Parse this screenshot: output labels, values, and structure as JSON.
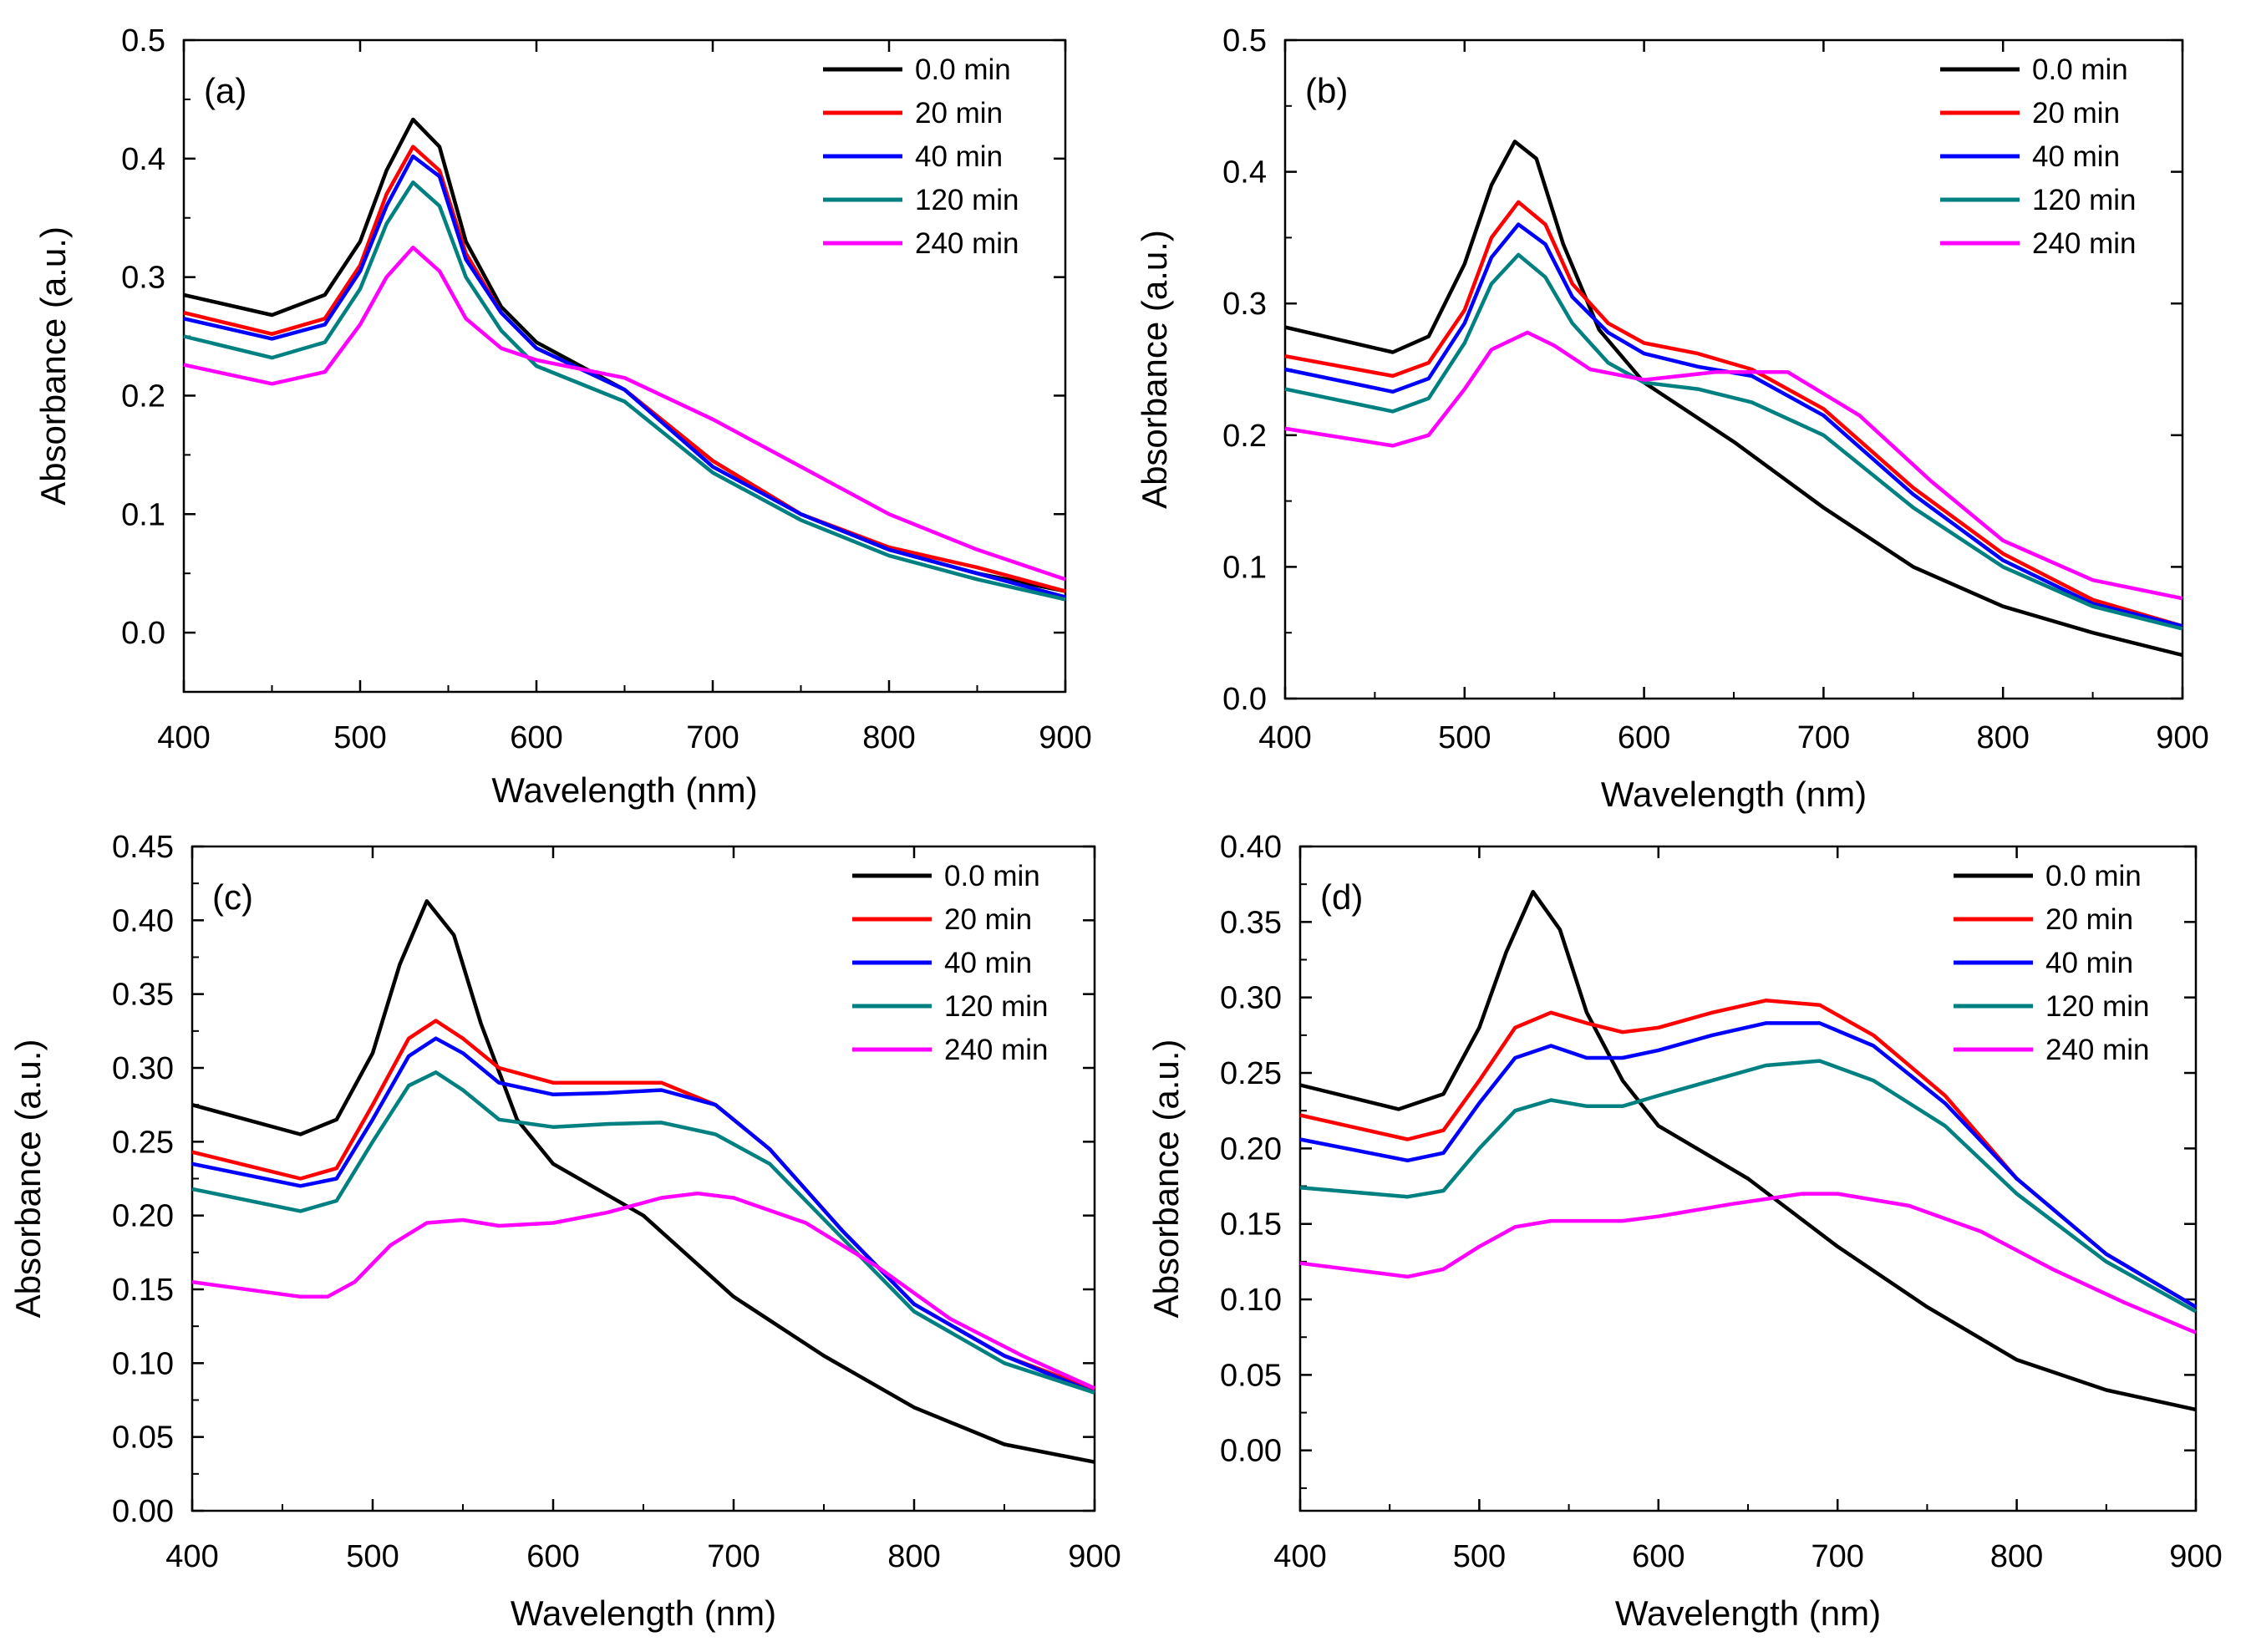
{
  "chart_data": [
    {
      "type": "line",
      "panel_label": "(a)",
      "xlabel": "Wavelength (nm)",
      "ylabel": "Absorbance (a.u.)",
      "xlim": [
        400,
        900
      ],
      "ylim": [
        -0.05,
        0.5
      ],
      "xticks": [
        "400",
        "500",
        "600",
        "700",
        "800",
        "900"
      ],
      "yticks": [
        "0.0",
        "0.1",
        "0.2",
        "0.3",
        "0.4",
        "0.5"
      ],
      "legend_position": "top-right",
      "series": [
        {
          "name": "0.0 min",
          "color": "#000000",
          "x": [
            400,
            450,
            480,
            500,
            515,
            530,
            545,
            560,
            580,
            600,
            650,
            700,
            750,
            800,
            850,
            900
          ],
          "y": [
            0.285,
            0.268,
            0.285,
            0.33,
            0.39,
            0.433,
            0.41,
            0.33,
            0.275,
            0.245,
            0.205,
            0.145,
            0.1,
            0.07,
            0.05,
            0.035
          ]
        },
        {
          "name": "20 min",
          "color": "#ff0000",
          "x": [
            400,
            450,
            480,
            500,
            515,
            530,
            545,
            560,
            580,
            600,
            650,
            700,
            750,
            800,
            850,
            900
          ],
          "y": [
            0.27,
            0.252,
            0.265,
            0.31,
            0.37,
            0.41,
            0.39,
            0.32,
            0.27,
            0.24,
            0.205,
            0.145,
            0.1,
            0.072,
            0.055,
            0.035
          ]
        },
        {
          "name": "40 min",
          "color": "#0000ff",
          "x": [
            400,
            450,
            480,
            500,
            515,
            530,
            545,
            560,
            580,
            600,
            650,
            700,
            750,
            800,
            850,
            900
          ],
          "y": [
            0.265,
            0.248,
            0.26,
            0.305,
            0.36,
            0.402,
            0.385,
            0.315,
            0.27,
            0.24,
            0.205,
            0.14,
            0.1,
            0.07,
            0.05,
            0.03
          ]
        },
        {
          "name": "120 min",
          "color": "#008080",
          "x": [
            400,
            450,
            480,
            500,
            515,
            530,
            545,
            560,
            580,
            600,
            650,
            700,
            750,
            800,
            850,
            900
          ],
          "y": [
            0.25,
            0.232,
            0.245,
            0.29,
            0.345,
            0.38,
            0.36,
            0.3,
            0.255,
            0.225,
            0.195,
            0.135,
            0.095,
            0.065,
            0.045,
            0.028
          ]
        },
        {
          "name": "240 min",
          "color": "#ff00ff",
          "x": [
            400,
            450,
            480,
            500,
            515,
            530,
            545,
            560,
            580,
            600,
            650,
            700,
            750,
            800,
            850,
            900
          ],
          "y": [
            0.226,
            0.21,
            0.22,
            0.26,
            0.3,
            0.325,
            0.305,
            0.265,
            0.24,
            0.23,
            0.215,
            0.18,
            0.14,
            0.1,
            0.07,
            0.045
          ]
        }
      ]
    },
    {
      "type": "line",
      "panel_label": "(b)",
      "xlabel": "Wavelength (nm)",
      "ylabel": "Absorbance (a.u.)",
      "xlim": [
        400,
        900
      ],
      "ylim": [
        0.0,
        0.5
      ],
      "xticks": [
        "400",
        "500",
        "600",
        "700",
        "800",
        "900"
      ],
      "yticks": [
        "0.0",
        "0.1",
        "0.2",
        "0.3",
        "0.4",
        "0.5"
      ],
      "legend_position": "top-right",
      "series": [
        {
          "name": "0.0 min",
          "color": "#000000",
          "x": [
            400,
            460,
            480,
            500,
            515,
            528,
            540,
            555,
            575,
            600,
            650,
            700,
            750,
            800,
            850,
            900
          ],
          "y": [
            0.282,
            0.263,
            0.275,
            0.33,
            0.39,
            0.423,
            0.41,
            0.345,
            0.28,
            0.24,
            0.195,
            0.145,
            0.1,
            0.07,
            0.05,
            0.033
          ]
        },
        {
          "name": "20 min",
          "color": "#ff0000",
          "x": [
            400,
            460,
            480,
            500,
            515,
            530,
            545,
            560,
            580,
            600,
            630,
            660,
            700,
            750,
            800,
            850,
            900
          ],
          "y": [
            0.26,
            0.245,
            0.255,
            0.295,
            0.35,
            0.377,
            0.36,
            0.315,
            0.285,
            0.27,
            0.262,
            0.25,
            0.22,
            0.16,
            0.11,
            0.075,
            0.055
          ]
        },
        {
          "name": "40 min",
          "color": "#0000ff",
          "x": [
            400,
            460,
            480,
            500,
            515,
            530,
            545,
            560,
            580,
            600,
            630,
            660,
            700,
            750,
            800,
            850,
            900
          ],
          "y": [
            0.25,
            0.233,
            0.243,
            0.285,
            0.335,
            0.36,
            0.345,
            0.305,
            0.278,
            0.262,
            0.252,
            0.245,
            0.215,
            0.155,
            0.105,
            0.072,
            0.055
          ]
        },
        {
          "name": "120 min",
          "color": "#008080",
          "x": [
            400,
            460,
            480,
            500,
            515,
            530,
            545,
            560,
            580,
            600,
            630,
            660,
            700,
            750,
            800,
            850,
            900
          ],
          "y": [
            0.235,
            0.218,
            0.228,
            0.27,
            0.315,
            0.337,
            0.32,
            0.285,
            0.255,
            0.24,
            0.235,
            0.225,
            0.2,
            0.145,
            0.1,
            0.07,
            0.053
          ]
        },
        {
          "name": "240 min",
          "color": "#ff00ff",
          "x": [
            400,
            460,
            480,
            500,
            515,
            535,
            550,
            570,
            600,
            640,
            680,
            720,
            760,
            800,
            850,
            900
          ],
          "y": [
            0.205,
            0.192,
            0.2,
            0.235,
            0.265,
            0.278,
            0.268,
            0.25,
            0.242,
            0.248,
            0.248,
            0.215,
            0.165,
            0.12,
            0.09,
            0.076
          ]
        }
      ]
    },
    {
      "type": "line",
      "panel_label": "(c)",
      "xlabel": "Wavelength (nm)",
      "ylabel": "Absorbance (a.u.)",
      "xlim": [
        400,
        900
      ],
      "ylim": [
        0.0,
        0.45
      ],
      "xticks": [
        "400",
        "500",
        "600",
        "700",
        "800",
        "900"
      ],
      "yticks": [
        "0.00",
        "0.05",
        "0.10",
        "0.15",
        "0.20",
        "0.25",
        "0.30",
        "0.35",
        "0.40",
        "0.45"
      ],
      "legend_position": "top-right",
      "series": [
        {
          "name": "0.0 min",
          "color": "#000000",
          "x": [
            400,
            460,
            480,
            500,
            515,
            530,
            545,
            560,
            580,
            600,
            650,
            700,
            750,
            800,
            850,
            900
          ],
          "y": [
            0.275,
            0.255,
            0.265,
            0.31,
            0.37,
            0.413,
            0.39,
            0.33,
            0.265,
            0.235,
            0.2,
            0.145,
            0.105,
            0.07,
            0.045,
            0.033
          ]
        },
        {
          "name": "20 min",
          "color": "#ff0000",
          "x": [
            400,
            460,
            480,
            500,
            520,
            535,
            550,
            570,
            600,
            630,
            660,
            690,
            720,
            760,
            800,
            850,
            900
          ],
          "y": [
            0.243,
            0.225,
            0.232,
            0.275,
            0.32,
            0.332,
            0.32,
            0.3,
            0.29,
            0.29,
            0.29,
            0.275,
            0.245,
            0.19,
            0.14,
            0.105,
            0.082
          ]
        },
        {
          "name": "40 min",
          "color": "#0000ff",
          "x": [
            400,
            460,
            480,
            500,
            520,
            535,
            550,
            570,
            600,
            630,
            660,
            690,
            720,
            760,
            800,
            850,
            900
          ],
          "y": [
            0.235,
            0.22,
            0.225,
            0.265,
            0.308,
            0.32,
            0.31,
            0.29,
            0.282,
            0.283,
            0.285,
            0.275,
            0.245,
            0.19,
            0.14,
            0.105,
            0.08
          ]
        },
        {
          "name": "120 min",
          "color": "#008080",
          "x": [
            400,
            460,
            480,
            500,
            520,
            535,
            550,
            570,
            600,
            630,
            660,
            690,
            720,
            760,
            800,
            850,
            900
          ],
          "y": [
            0.218,
            0.203,
            0.21,
            0.25,
            0.288,
            0.297,
            0.285,
            0.265,
            0.26,
            0.262,
            0.263,
            0.255,
            0.235,
            0.185,
            0.135,
            0.1,
            0.08
          ]
        },
        {
          "name": "240 min",
          "color": "#ff00ff",
          "x": [
            400,
            460,
            475,
            490,
            510,
            530,
            550,
            570,
            600,
            630,
            660,
            680,
            700,
            740,
            780,
            820,
            860,
            900
          ],
          "y": [
            0.155,
            0.145,
            0.145,
            0.155,
            0.18,
            0.195,
            0.197,
            0.193,
            0.195,
            0.202,
            0.212,
            0.215,
            0.212,
            0.195,
            0.165,
            0.13,
            0.105,
            0.083
          ]
        }
      ]
    },
    {
      "type": "line",
      "panel_label": "(d)",
      "xlabel": "Wavelength (nm)",
      "ylabel": "Absorbance (a.u.)",
      "xlim": [
        400,
        900
      ],
      "ylim": [
        -0.04,
        0.4
      ],
      "xticks": [
        "400",
        "500",
        "600",
        "700",
        "800",
        "900"
      ],
      "yticks": [
        "0.00",
        "0.05",
        "0.10",
        "0.15",
        "0.20",
        "0.25",
        "0.30",
        "0.35",
        "0.40"
      ],
      "legend_position": "top-right",
      "series": [
        {
          "name": "0.0 min",
          "color": "#000000",
          "x": [
            400,
            455,
            480,
            500,
            515,
            530,
            545,
            560,
            580,
            600,
            650,
            700,
            750,
            800,
            850,
            900
          ],
          "y": [
            0.242,
            0.226,
            0.236,
            0.28,
            0.33,
            0.37,
            0.345,
            0.29,
            0.245,
            0.215,
            0.18,
            0.135,
            0.095,
            0.06,
            0.04,
            0.027
          ]
        },
        {
          "name": "20 min",
          "color": "#ff0000",
          "x": [
            400,
            460,
            480,
            500,
            520,
            540,
            560,
            580,
            600,
            630,
            660,
            690,
            720,
            760,
            800,
            850,
            900
          ],
          "y": [
            0.222,
            0.206,
            0.212,
            0.245,
            0.28,
            0.29,
            0.283,
            0.277,
            0.28,
            0.29,
            0.298,
            0.295,
            0.275,
            0.235,
            0.18,
            0.13,
            0.095
          ]
        },
        {
          "name": "40 min",
          "color": "#0000ff",
          "x": [
            400,
            460,
            480,
            500,
            520,
            540,
            560,
            580,
            600,
            630,
            660,
            690,
            720,
            760,
            800,
            850,
            900
          ],
          "y": [
            0.206,
            0.192,
            0.197,
            0.23,
            0.26,
            0.268,
            0.26,
            0.26,
            0.265,
            0.275,
            0.283,
            0.283,
            0.268,
            0.23,
            0.18,
            0.13,
            0.095
          ]
        },
        {
          "name": "120 min",
          "color": "#008080",
          "x": [
            400,
            460,
            480,
            500,
            520,
            540,
            560,
            580,
            600,
            630,
            660,
            690,
            720,
            760,
            800,
            850,
            900
          ],
          "y": [
            0.174,
            0.168,
            0.172,
            0.2,
            0.225,
            0.232,
            0.228,
            0.228,
            0.235,
            0.245,
            0.255,
            0.258,
            0.245,
            0.215,
            0.17,
            0.125,
            0.092
          ]
        },
        {
          "name": "240 min",
          "color": "#ff00ff",
          "x": [
            400,
            460,
            480,
            500,
            520,
            540,
            560,
            580,
            600,
            640,
            680,
            700,
            740,
            780,
            820,
            860,
            900
          ],
          "y": [
            0.124,
            0.115,
            0.12,
            0.135,
            0.148,
            0.152,
            0.152,
            0.152,
            0.155,
            0.163,
            0.17,
            0.17,
            0.162,
            0.145,
            0.12,
            0.098,
            0.078
          ]
        }
      ]
    }
  ]
}
